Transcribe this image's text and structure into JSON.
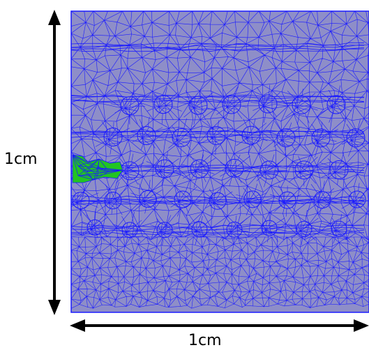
{
  "figure": {
    "vertical_dimension_label": "1cm",
    "horizontal_dimension_label": "1cm"
  },
  "colors": {
    "background": "#ffffff",
    "domain_fill": "#8e8ec8",
    "mesh_edges": "#1a1aff",
    "highlight_fill": "#22c422",
    "arrow": "#000000"
  },
  "mesh": {
    "element_type": "triangular",
    "inclusion_rows": 5,
    "highlighted_region": "left-edge"
  }
}
